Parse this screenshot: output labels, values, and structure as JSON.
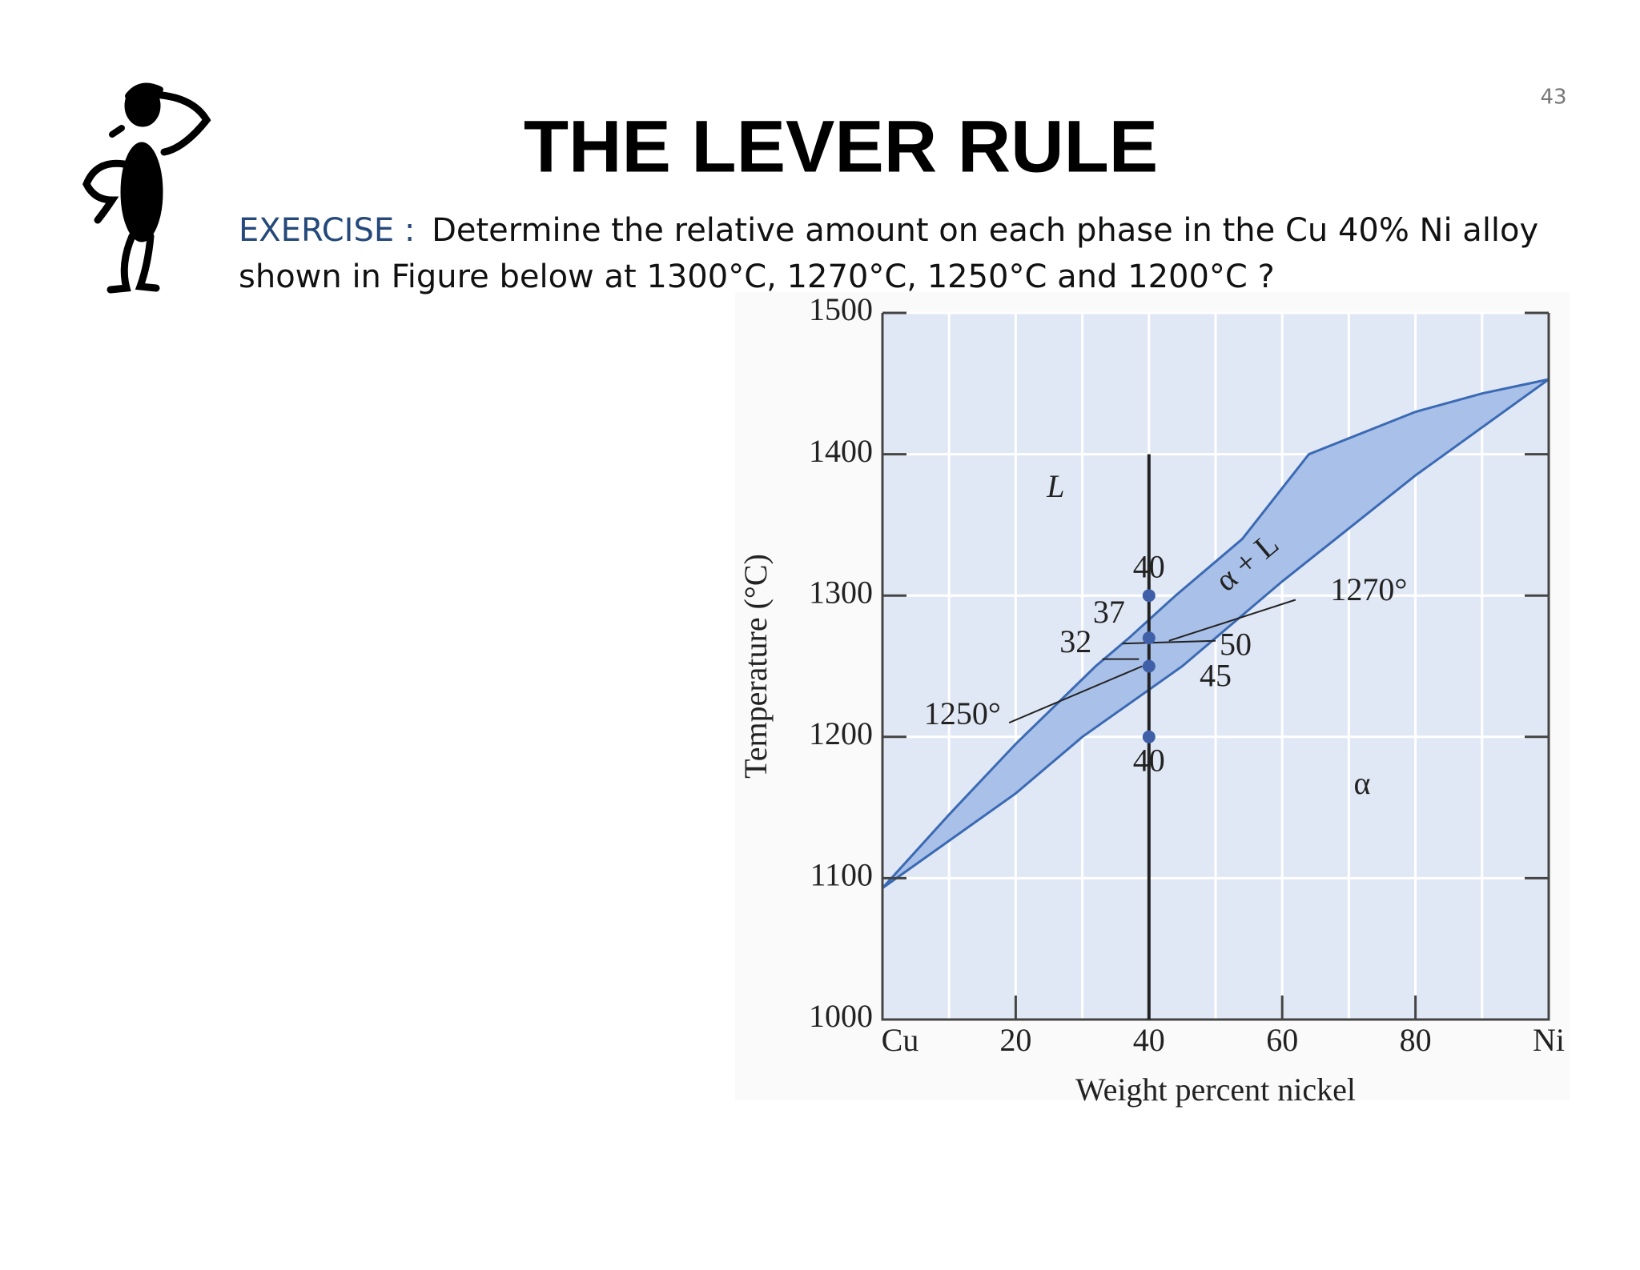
{
  "slide": {
    "page_number": "43",
    "title": "THE LEVER RULE",
    "exercise_label": "EXERCISE :",
    "body_lines": [
      "Determine the relative amount on each phase in the Cu 40% Ni alloy",
      "shown in Figure below at 1300°C, 1270°C, 1250°C and 1200°C ?"
    ]
  },
  "chart_data": {
    "type": "phase-diagram",
    "x_label": "Weight percent nickel",
    "y_label": "Temperature (°C)",
    "xlim": [
      0,
      100
    ],
    "ylim": [
      1000,
      1500
    ],
    "xticks": [
      {
        "value": 0,
        "label": "Cu"
      },
      20,
      40,
      60,
      80,
      {
        "value": 100,
        "label": "Ni"
      }
    ],
    "yticks": [
      1000,
      1100,
      1200,
      1300,
      1400,
      1500
    ],
    "grid": true,
    "region_color": "#a9c0e8",
    "series": [
      {
        "color": "#3b6ab4",
        "x": [
          0,
          10,
          20,
          32,
          37,
          44,
          54,
          64,
          80,
          90,
          100
        ],
        "values": [
          1093,
          1145,
          1195,
          1250,
          1270,
          1300,
          1340,
          1400,
          1430,
          1443,
          1453
        ]
      },
      {
        "color": "#3b6ab4",
        "x": [
          0,
          20,
          30,
          45,
          50,
          60,
          80,
          100
        ],
        "values": [
          1093,
          1160,
          1200,
          1250,
          1270,
          1310,
          1385,
          1453
        ]
      }
    ],
    "points": {
      "color": "#3f60a8",
      "x": [
        40,
        40,
        40,
        40
      ],
      "values": [
        1300,
        1270,
        1250,
        1200
      ]
    },
    "alloy": {
      "x": 40,
      "top": 1400
    },
    "annotations": [
      "L",
      "α",
      "α + L",
      "40",
      "37",
      "32",
      "50",
      "45",
      "40",
      "1270°",
      "1250°"
    ]
  }
}
